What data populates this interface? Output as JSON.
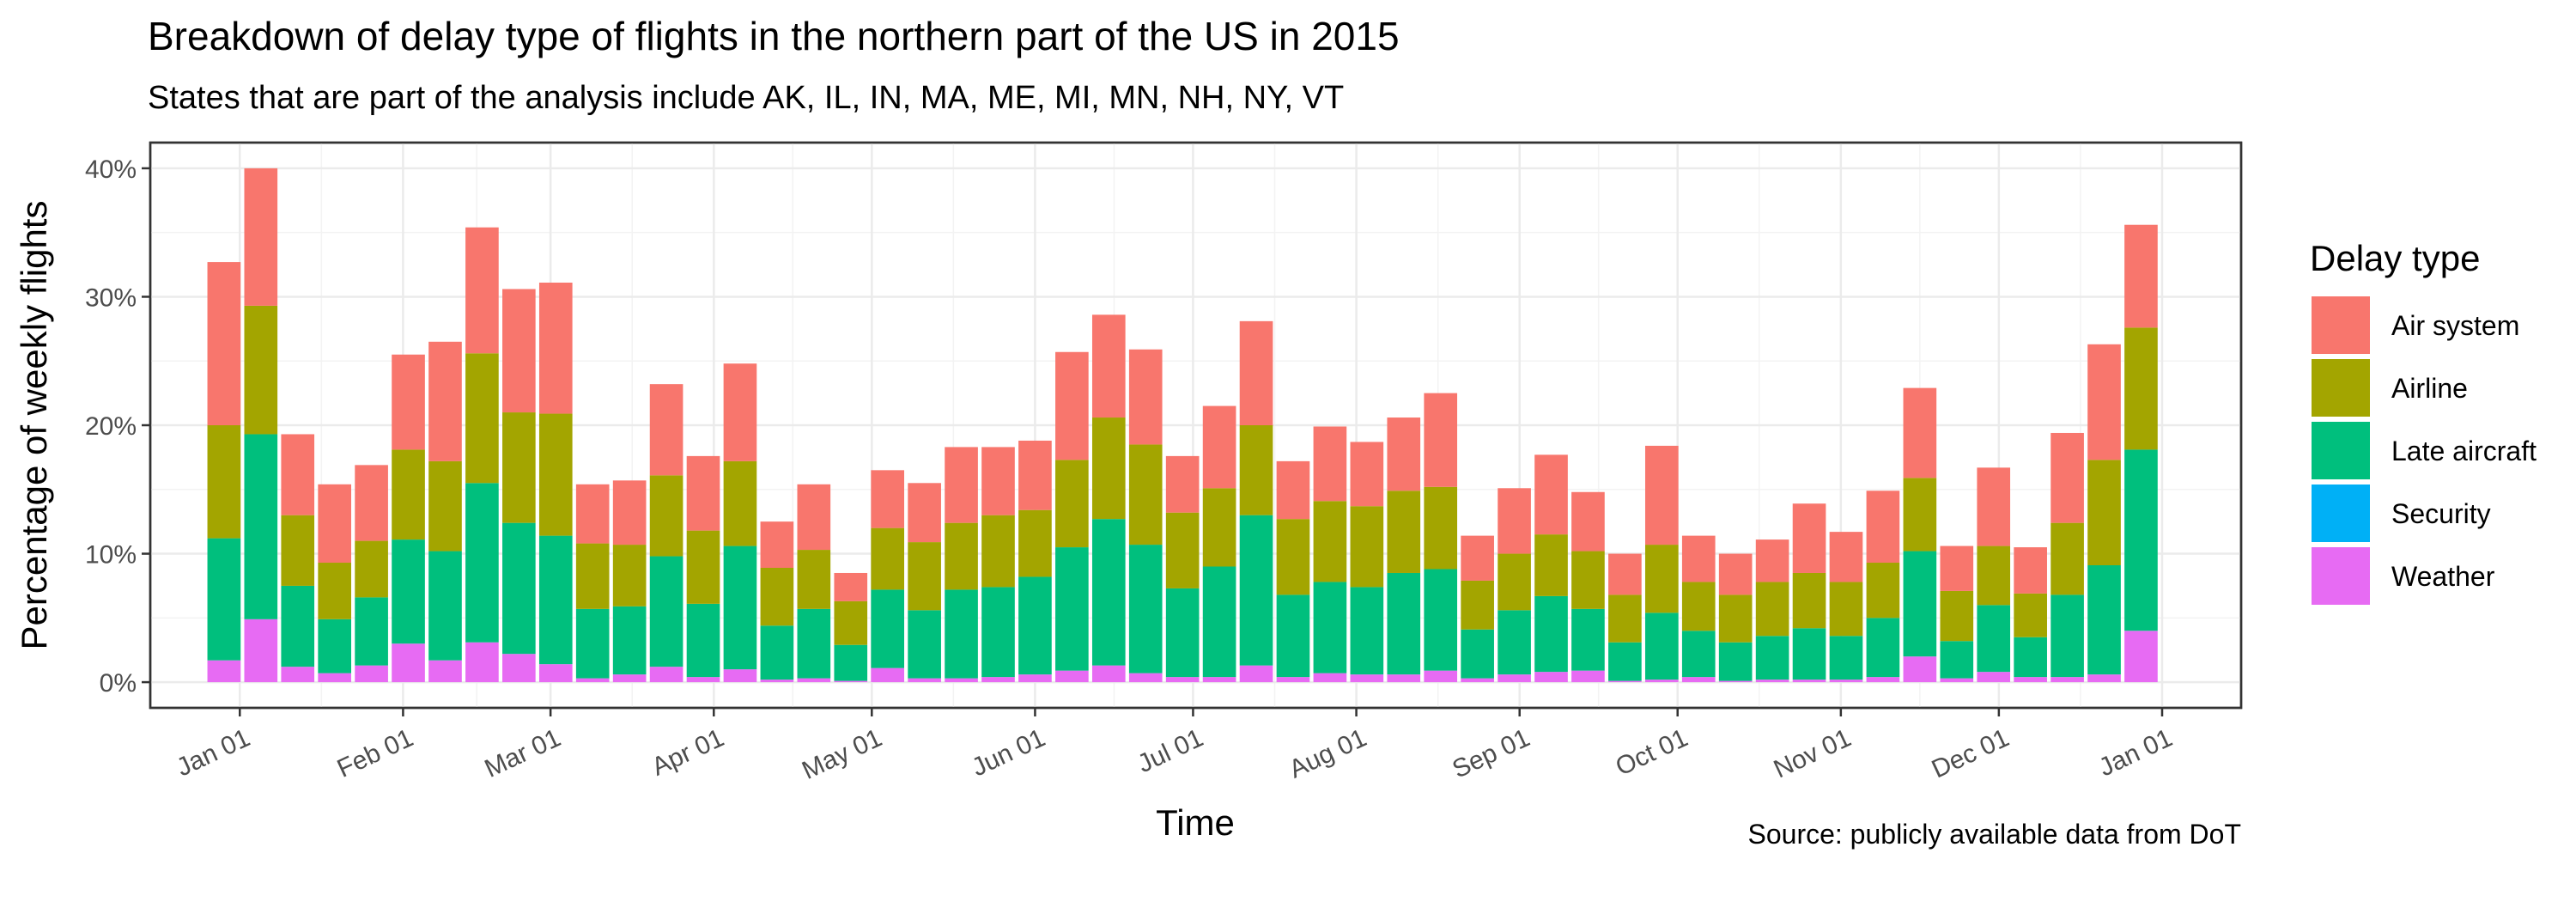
{
  "chart_data": {
    "type": "bar",
    "stacked": true,
    "title": "Breakdown of delay type of flights in the northern part of the US in 2015",
    "subtitle": "States that are part of the analysis include AK, IL, IN, MA, ME, MI, MN, NH, NY, VT",
    "xlabel": "Time",
    "ylabel": "Percentage of weekly flights",
    "caption": "Source: publicly available data from DoT",
    "legend_title": "Delay type",
    "legend_position": "right",
    "grid": true,
    "x_is_date": true,
    "xlim": [
      "2014-12-15",
      "2016-01-16"
    ],
    "ylim": [
      -0.02,
      0.42
    ],
    "x_ticks": [
      {
        "date": "2015-01-01",
        "label": "Jan 01"
      },
      {
        "date": "2015-02-01",
        "label": "Feb 01"
      },
      {
        "date": "2015-03-01",
        "label": "Mar 01"
      },
      {
        "date": "2015-04-01",
        "label": "Apr 01"
      },
      {
        "date": "2015-05-01",
        "label": "May 01"
      },
      {
        "date": "2015-06-01",
        "label": "Jun 01"
      },
      {
        "date": "2015-07-01",
        "label": "Jul 01"
      },
      {
        "date": "2015-08-01",
        "label": "Aug 01"
      },
      {
        "date": "2015-09-01",
        "label": "Sep 01"
      },
      {
        "date": "2015-10-01",
        "label": "Oct 01"
      },
      {
        "date": "2015-11-01",
        "label": "Nov 01"
      },
      {
        "date": "2015-12-01",
        "label": "Dec 01"
      },
      {
        "date": "2016-01-01",
        "label": "Jan 01"
      }
    ],
    "y_ticks": [
      {
        "value": 0,
        "label": "0%"
      },
      {
        "value": 0.1,
        "label": "10%"
      },
      {
        "value": 0.2,
        "label": "20%"
      },
      {
        "value": 0.3,
        "label": "30%"
      },
      {
        "value": 0.4,
        "label": "40%"
      }
    ],
    "series": [
      {
        "name": "Weather",
        "color": "#E76BF3"
      },
      {
        "name": "Security",
        "color": "#00B0F6"
      },
      {
        "name": "Late aircraft",
        "color": "#00BF7D"
      },
      {
        "name": "Airline",
        "color": "#A3A500"
      },
      {
        "name": "Air system",
        "color": "#F8766D"
      }
    ],
    "legend_order": [
      "Air system",
      "Airline",
      "Late aircraft",
      "Security",
      "Weather"
    ],
    "weeks": [
      {
        "date": "2014-12-29",
        "totals": [
          0.017,
          0.017,
          0.112,
          0.2,
          0.327
        ]
      },
      {
        "date": "2015-01-05",
        "totals": [
          0.049,
          0.049,
          0.193,
          0.293,
          0.4
        ]
      },
      {
        "date": "2015-01-12",
        "totals": [
          0.012,
          0.012,
          0.075,
          0.13,
          0.193
        ]
      },
      {
        "date": "2015-01-19",
        "totals": [
          0.007,
          0.007,
          0.049,
          0.093,
          0.154
        ]
      },
      {
        "date": "2015-01-26",
        "totals": [
          0.013,
          0.013,
          0.066,
          0.11,
          0.169
        ]
      },
      {
        "date": "2015-02-02",
        "totals": [
          0.03,
          0.03,
          0.111,
          0.181,
          0.255
        ]
      },
      {
        "date": "2015-02-09",
        "totals": [
          0.017,
          0.017,
          0.102,
          0.172,
          0.265
        ]
      },
      {
        "date": "2015-02-16",
        "totals": [
          0.031,
          0.031,
          0.155,
          0.256,
          0.354
        ]
      },
      {
        "date": "2015-02-23",
        "totals": [
          0.022,
          0.022,
          0.124,
          0.21,
          0.306
        ]
      },
      {
        "date": "2015-03-02",
        "totals": [
          0.014,
          0.014,
          0.114,
          0.209,
          0.311
        ]
      },
      {
        "date": "2015-03-09",
        "totals": [
          0.003,
          0.003,
          0.057,
          0.108,
          0.154
        ]
      },
      {
        "date": "2015-03-16",
        "totals": [
          0.006,
          0.006,
          0.059,
          0.107,
          0.157
        ]
      },
      {
        "date": "2015-03-23",
        "totals": [
          0.012,
          0.012,
          0.098,
          0.161,
          0.232
        ]
      },
      {
        "date": "2015-03-30",
        "totals": [
          0.004,
          0.004,
          0.061,
          0.118,
          0.176
        ]
      },
      {
        "date": "2015-04-06",
        "totals": [
          0.01,
          0.01,
          0.106,
          0.172,
          0.248
        ]
      },
      {
        "date": "2015-04-13",
        "totals": [
          0.002,
          0.002,
          0.044,
          0.089,
          0.125
        ]
      },
      {
        "date": "2015-04-20",
        "totals": [
          0.003,
          0.003,
          0.057,
          0.103,
          0.154
        ]
      },
      {
        "date": "2015-04-27",
        "totals": [
          0.001,
          0.001,
          0.029,
          0.063,
          0.085
        ]
      },
      {
        "date": "2015-05-04",
        "totals": [
          0.011,
          0.011,
          0.072,
          0.12,
          0.165
        ]
      },
      {
        "date": "2015-05-11",
        "totals": [
          0.003,
          0.003,
          0.056,
          0.109,
          0.155
        ]
      },
      {
        "date": "2015-05-18",
        "totals": [
          0.003,
          0.003,
          0.072,
          0.124,
          0.183
        ]
      },
      {
        "date": "2015-05-25",
        "totals": [
          0.004,
          0.004,
          0.074,
          0.13,
          0.183
        ]
      },
      {
        "date": "2015-06-01",
        "totals": [
          0.006,
          0.006,
          0.082,
          0.134,
          0.188
        ]
      },
      {
        "date": "2015-06-08",
        "totals": [
          0.009,
          0.009,
          0.105,
          0.173,
          0.257
        ]
      },
      {
        "date": "2015-06-15",
        "totals": [
          0.013,
          0.013,
          0.127,
          0.206,
          0.286
        ]
      },
      {
        "date": "2015-06-22",
        "totals": [
          0.007,
          0.007,
          0.107,
          0.185,
          0.259
        ]
      },
      {
        "date": "2015-06-29",
        "totals": [
          0.004,
          0.004,
          0.073,
          0.132,
          0.176
        ]
      },
      {
        "date": "2015-07-06",
        "totals": [
          0.004,
          0.004,
          0.09,
          0.151,
          0.215
        ]
      },
      {
        "date": "2015-07-13",
        "totals": [
          0.013,
          0.013,
          0.13,
          0.2,
          0.281
        ]
      },
      {
        "date": "2015-07-20",
        "totals": [
          0.004,
          0.004,
          0.068,
          0.127,
          0.172
        ]
      },
      {
        "date": "2015-07-27",
        "totals": [
          0.007,
          0.007,
          0.078,
          0.141,
          0.199
        ]
      },
      {
        "date": "2015-08-03",
        "totals": [
          0.006,
          0.006,
          0.074,
          0.137,
          0.187
        ]
      },
      {
        "date": "2015-08-10",
        "totals": [
          0.006,
          0.006,
          0.085,
          0.149,
          0.206
        ]
      },
      {
        "date": "2015-08-17",
        "totals": [
          0.009,
          0.009,
          0.088,
          0.152,
          0.225
        ]
      },
      {
        "date": "2015-08-24",
        "totals": [
          0.003,
          0.003,
          0.041,
          0.079,
          0.114
        ]
      },
      {
        "date": "2015-08-31",
        "totals": [
          0.006,
          0.006,
          0.056,
          0.1,
          0.151
        ]
      },
      {
        "date": "2015-09-07",
        "totals": [
          0.008,
          0.008,
          0.067,
          0.115,
          0.177
        ]
      },
      {
        "date": "2015-09-14",
        "totals": [
          0.009,
          0.009,
          0.057,
          0.102,
          0.148
        ]
      },
      {
        "date": "2015-09-21",
        "totals": [
          0.001,
          0.001,
          0.031,
          0.068,
          0.1
        ]
      },
      {
        "date": "2015-09-28",
        "totals": [
          0.002,
          0.002,
          0.054,
          0.107,
          0.184
        ]
      },
      {
        "date": "2015-10-05",
        "totals": [
          0.004,
          0.004,
          0.04,
          0.078,
          0.114
        ]
      },
      {
        "date": "2015-10-12",
        "totals": [
          0.001,
          0.001,
          0.031,
          0.068,
          0.1
        ]
      },
      {
        "date": "2015-10-19",
        "totals": [
          0.002,
          0.002,
          0.036,
          0.078,
          0.111
        ]
      },
      {
        "date": "2015-10-26",
        "totals": [
          0.002,
          0.002,
          0.042,
          0.085,
          0.139
        ]
      },
      {
        "date": "2015-11-02",
        "totals": [
          0.002,
          0.002,
          0.036,
          0.078,
          0.117
        ]
      },
      {
        "date": "2015-11-09",
        "totals": [
          0.004,
          0.004,
          0.05,
          0.093,
          0.149
        ]
      },
      {
        "date": "2015-11-16",
        "totals": [
          0.02,
          0.02,
          0.102,
          0.159,
          0.229
        ]
      },
      {
        "date": "2015-11-23",
        "totals": [
          0.003,
          0.003,
          0.032,
          0.071,
          0.106
        ]
      },
      {
        "date": "2015-11-30",
        "totals": [
          0.008,
          0.008,
          0.06,
          0.106,
          0.167
        ]
      },
      {
        "date": "2015-12-07",
        "totals": [
          0.004,
          0.004,
          0.035,
          0.069,
          0.105
        ]
      },
      {
        "date": "2015-12-14",
        "totals": [
          0.004,
          0.004,
          0.068,
          0.124,
          0.194
        ]
      },
      {
        "date": "2015-12-21",
        "totals": [
          0.006,
          0.006,
          0.091,
          0.173,
          0.263
        ]
      },
      {
        "date": "2015-12-28",
        "totals": [
          0.04,
          0.04,
          0.181,
          0.276,
          0.356
        ]
      }
    ],
    "totals_order": [
      "Weather",
      "Security",
      "Late aircraft",
      "Airline",
      "Air system"
    ]
  }
}
